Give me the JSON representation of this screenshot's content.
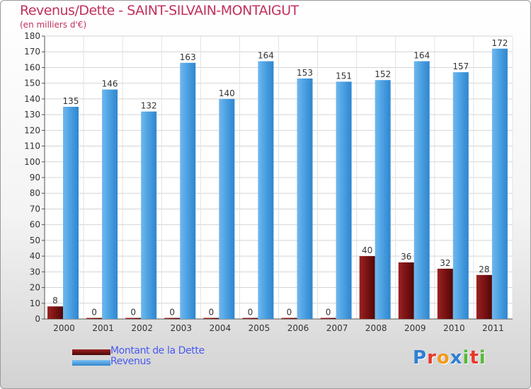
{
  "title": "Revenus/Dette - SAINT-SILVAIN-MONTAIGUT",
  "subtitle": "(en milliers d'€)",
  "brand": "Proxiti",
  "brand_colors": [
    "#2f7fd6",
    "#e5392b",
    "#f39a1e",
    "#2f7fd6",
    "#58b93a",
    "#e5392b",
    "#58b93a"
  ],
  "chart_data": {
    "type": "bar",
    "categories": [
      "2000",
      "2001",
      "2002",
      "2003",
      "2004",
      "2005",
      "2006",
      "2007",
      "2008",
      "2009",
      "2010",
      "2011"
    ],
    "series": [
      {
        "name": "Montant de la Dette",
        "color": "#7a1212",
        "values": [
          8,
          0,
          0,
          0,
          0,
          0,
          0,
          0,
          40,
          36,
          32,
          28
        ]
      },
      {
        "name": "Revenus",
        "color": "#4a9fe0",
        "values": [
          135,
          146,
          132,
          163,
          140,
          164,
          153,
          151,
          152,
          164,
          157,
          172
        ]
      }
    ],
    "ylim": [
      0,
      180
    ],
    "yticks": [
      0,
      10,
      20,
      30,
      40,
      50,
      60,
      70,
      80,
      90,
      100,
      110,
      120,
      130,
      140,
      150,
      160,
      170,
      180
    ],
    "grid": true,
    "legend": "bottom-left"
  }
}
